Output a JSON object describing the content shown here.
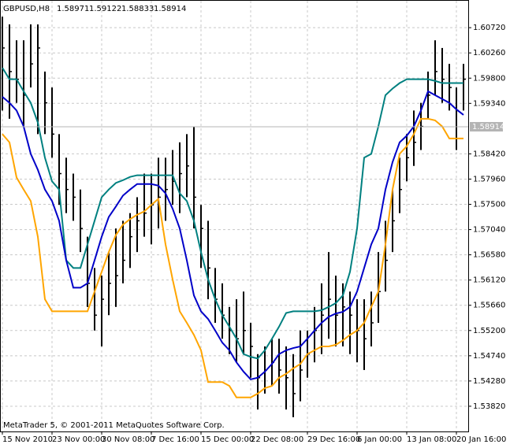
{
  "chart_data": {
    "type": "ohlc",
    "symbol": "GBPUSD,H8",
    "ohlc": [
      1.58971,
      1.59122,
      1.58833,
      1.58914
    ],
    "footer": "MetaTrader 5, © 2001-2011 MetaQuotes Software Corp.",
    "bid": 1.58914,
    "grid": true,
    "bar_color": "#000000",
    "ylim": [
      1.5336,
      1.6121
    ],
    "yticks": [
      {
        "value": 1.6072,
        "label": "1.60720"
      },
      {
        "value": 1.6026,
        "label": "1.60260"
      },
      {
        "value": 1.598,
        "label": "1.59800"
      },
      {
        "value": 1.5934,
        "label": "1.59340"
      },
      {
        "value": 1.5842,
        "label": "1.58420"
      },
      {
        "value": 1.5796,
        "label": "1.57960"
      },
      {
        "value": 1.575,
        "label": "1.57500"
      },
      {
        "value": 1.5704,
        "label": "1.57040"
      },
      {
        "value": 1.5658,
        "label": "1.56580"
      },
      {
        "value": 1.5612,
        "label": "1.56120"
      },
      {
        "value": 1.5566,
        "label": "1.55660"
      },
      {
        "value": 1.552,
        "label": "1.55200"
      },
      {
        "value": 1.5474,
        "label": "1.54740"
      },
      {
        "value": 1.5428,
        "label": "1.54280"
      },
      {
        "value": 1.5382,
        "label": "1.53820"
      }
    ],
    "xticks": [
      {
        "value": 0,
        "label": "15 Nov 2010"
      },
      {
        "value": 7,
        "label": "23 Nov 00:00"
      },
      {
        "value": 14,
        "label": "30 Nov 08:00"
      },
      {
        "value": 21,
        "label": "7 Dec 16:00"
      },
      {
        "value": 28,
        "label": "15 Dec 00:00"
      },
      {
        "value": 35,
        "label": "22 Dec 08:00"
      },
      {
        "value": 43,
        "label": "29 Dec 16:00"
      },
      {
        "value": 50,
        "label": "6 Jan 00:00"
      },
      {
        "value": 57,
        "label": "13 Jan 08:00"
      },
      {
        "value": 64,
        "label": "20 Jan 16:00"
      }
    ],
    "bars": {
      "high": [
        1.6092,
        1.6078,
        1.6049,
        1.6049,
        1.6078,
        1.6078,
        1.5992,
        1.5963,
        1.5878,
        1.5835,
        1.5806,
        1.5777,
        1.5691,
        1.5634,
        1.562,
        1.5663,
        1.5706,
        1.572,
        1.5734,
        1.5763,
        1.5806,
        1.5806,
        1.5835,
        1.5835,
        1.5849,
        1.5863,
        1.5878,
        1.5892,
        1.5749,
        1.572,
        1.5634,
        1.5606,
        1.5563,
        1.5577,
        1.5591,
        1.5534,
        1.5477,
        1.5491,
        1.5505,
        1.5505,
        1.5491,
        1.5477,
        1.552,
        1.552,
        1.5563,
        1.5606,
        1.5663,
        1.562,
        1.5606,
        1.5591,
        1.5577,
        1.5577,
        1.5591,
        1.5663,
        1.572,
        1.5777,
        1.5835,
        1.5878,
        1.5921,
        1.5935,
        1.5992,
        1.6049,
        1.6035,
        1.6006,
        1.5963,
        1.6006
      ],
      "low": [
        1.5921,
        1.5906,
        1.5935,
        1.5892,
        1.5963,
        1.5878,
        1.5878,
        1.5835,
        1.5749,
        1.5734,
        1.572,
        1.5663,
        1.5563,
        1.552,
        1.5491,
        1.5548,
        1.5563,
        1.5606,
        1.5634,
        1.5663,
        1.5691,
        1.5677,
        1.5706,
        1.572,
        1.5749,
        1.5734,
        1.5763,
        1.5706,
        1.5634,
        1.5577,
        1.5534,
        1.5505,
        1.5477,
        1.5462,
        1.5477,
        1.5434,
        1.5376,
        1.5405,
        1.5419,
        1.5405,
        1.5376,
        1.5362,
        1.5391,
        1.5434,
        1.5462,
        1.5477,
        1.5505,
        1.5491,
        1.5491,
        1.5477,
        1.5462,
        1.5448,
        1.5491,
        1.5534,
        1.5591,
        1.5663,
        1.5734,
        1.5792,
        1.582,
        1.5849,
        1.5906,
        1.5949,
        1.5935,
        1.5921,
        1.5849,
        1.5921
      ],
      "close": [
        1.6035,
        1.5992,
        1.5978,
        1.5949,
        1.6006,
        1.6035,
        1.5935,
        1.5878,
        1.5806,
        1.5777,
        1.5763,
        1.5706,
        1.5606,
        1.5548,
        1.5577,
        1.5606,
        1.562,
        1.5648,
        1.5691,
        1.572,
        1.5734,
        1.5749,
        1.5763,
        1.5777,
        1.5792,
        1.5806,
        1.582,
        1.5763,
        1.5706,
        1.5634,
        1.5577,
        1.5548,
        1.552,
        1.5505,
        1.552,
        1.5491,
        1.5434,
        1.5448,
        1.5462,
        1.5448,
        1.5434,
        1.5405,
        1.5448,
        1.5477,
        1.552,
        1.5548,
        1.5577,
        1.5548,
        1.5563,
        1.5548,
        1.552,
        1.5505,
        1.5534,
        1.5591,
        1.5648,
        1.572,
        1.5777,
        1.5835,
        1.5863,
        1.5892,
        1.5949,
        1.5992,
        1.5978,
        1.5963,
        1.5921,
        1.5978
      ]
    },
    "series": [
      {
        "color": "#008080",
        "values": [
          1.5999,
          1.5978,
          1.5978,
          1.5956,
          1.5935,
          1.5899,
          1.5835,
          1.5792,
          1.5777,
          1.5648,
          1.5634,
          1.5634,
          1.5677,
          1.572,
          1.5763,
          1.5777,
          1.5789,
          1.5794,
          1.58,
          1.5803,
          1.5803,
          1.5803,
          1.5803,
          1.5803,
          1.5803,
          1.577,
          1.5756,
          1.572,
          1.5663,
          1.5613,
          1.5577,
          1.5548,
          1.5527,
          1.5505,
          1.5477,
          1.5472,
          1.5469,
          1.5484,
          1.5505,
          1.5527,
          1.5552,
          1.5555,
          1.5555,
          1.5555,
          1.5555,
          1.5557,
          1.5563,
          1.557,
          1.5584,
          1.5627,
          1.5706,
          1.5835,
          1.5842,
          1.5892,
          1.5949,
          1.5961,
          1.5971,
          1.5978,
          1.5978,
          1.5978,
          1.5978,
          1.5975,
          1.5971,
          1.5971,
          1.5971,
          1.5971
        ]
      },
      {
        "color": "#0000c8",
        "values": [
          1.5946,
          1.5935,
          1.5921,
          1.5892,
          1.5842,
          1.5813,
          1.5777,
          1.5756,
          1.572,
          1.5648,
          1.5598,
          1.5598,
          1.5606,
          1.5648,
          1.5691,
          1.5727,
          1.5746,
          1.5766,
          1.5777,
          1.5787,
          1.5787,
          1.5787,
          1.5784,
          1.577,
          1.5742,
          1.5706,
          1.5648,
          1.5584,
          1.5555,
          1.5541,
          1.552,
          1.5498,
          1.5484,
          1.5462,
          1.5445,
          1.5431,
          1.5434,
          1.5445,
          1.5459,
          1.5477,
          1.5484,
          1.5488,
          1.5491,
          1.5505,
          1.552,
          1.5534,
          1.5545,
          1.5551,
          1.5554,
          1.5563,
          1.5591,
          1.5634,
          1.5677,
          1.5706,
          1.5777,
          1.5827,
          1.5863,
          1.5875,
          1.5892,
          1.5921,
          1.5956,
          1.5949,
          1.5942,
          1.5935,
          1.5923,
          1.5913
        ]
      },
      {
        "color": "#ffa500",
        "values": [
          1.5878,
          1.5863,
          1.5799,
          1.5777,
          1.5756,
          1.5691,
          1.5577,
          1.5555,
          1.5555,
          1.5555,
          1.5555,
          1.5555,
          1.5555,
          1.5591,
          1.5627,
          1.5663,
          1.5694,
          1.5713,
          1.5723,
          1.5731,
          1.5737,
          1.5749,
          1.576,
          1.5677,
          1.5613,
          1.5555,
          1.5534,
          1.5512,
          1.5484,
          1.5426,
          1.5426,
          1.5426,
          1.5419,
          1.5398,
          1.5398,
          1.5398,
          1.5405,
          1.5415,
          1.5419,
          1.5434,
          1.5441,
          1.5451,
          1.5459,
          1.5477,
          1.5484,
          1.5491,
          1.5491,
          1.5494,
          1.5502,
          1.5512,
          1.552,
          1.5534,
          1.5563,
          1.5591,
          1.5677,
          1.5777,
          1.5842,
          1.5856,
          1.5878,
          1.5906,
          1.5906,
          1.5903,
          1.5892,
          1.587,
          1.587,
          1.587
        ]
      }
    ]
  }
}
